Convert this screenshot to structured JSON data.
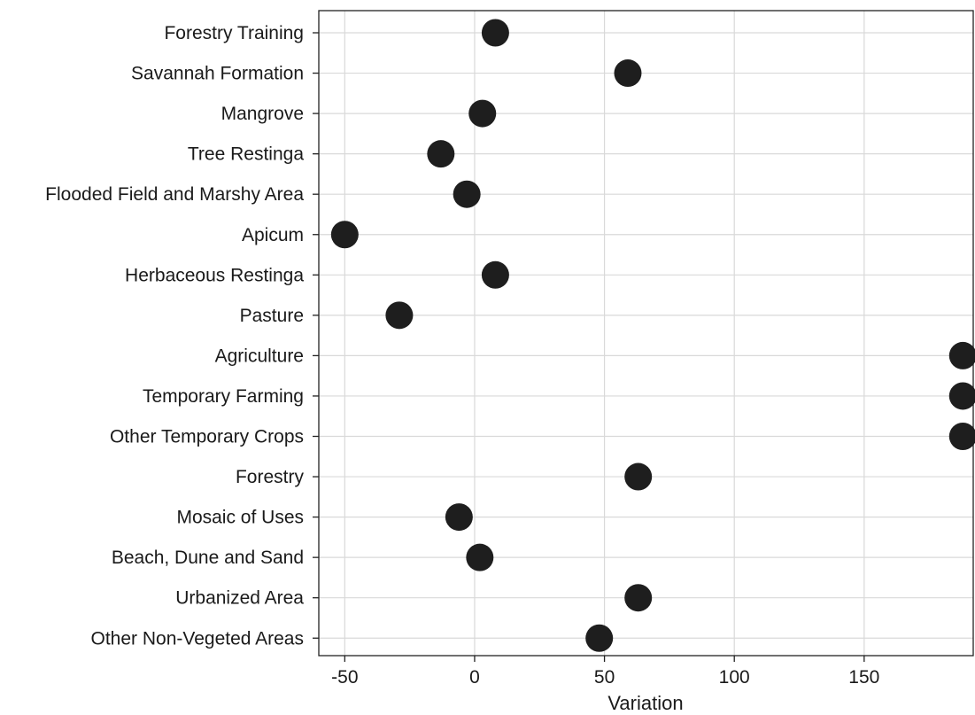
{
  "chart_data": {
    "type": "scatter",
    "title": "",
    "xlabel": "Variation",
    "ylabel": "",
    "xlim": [
      -60,
      192
    ],
    "xticks": [
      -50,
      0,
      50,
      100,
      150
    ],
    "grid": true,
    "legend": "none",
    "marker_color": "#1e1e1e",
    "categories": [
      "Forestry Training",
      "Savannah Formation",
      "Mangrove",
      "Tree Restinga",
      "Flooded Field and Marshy Area",
      "Apicum",
      "Herbaceous Restinga",
      "Pasture",
      "Agriculture",
      "Temporary Farming",
      "Other Temporary Crops",
      "Forestry",
      "Mosaic of Uses",
      "Beach, Dune and Sand",
      "Urbanized Area",
      "Other  Non-Vegeted Areas"
    ],
    "values": [
      8,
      59,
      3,
      -13,
      -3,
      -50,
      8,
      -29,
      188,
      188,
      188,
      63,
      -6,
      2,
      63,
      48
    ]
  }
}
